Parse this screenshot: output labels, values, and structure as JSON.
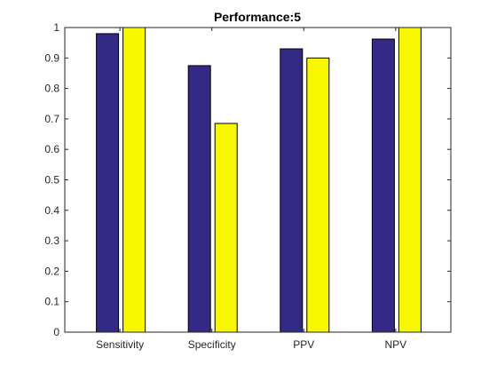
{
  "chart_data": {
    "type": "bar",
    "title": "Performance:5",
    "xlabel": "",
    "ylabel": "",
    "categories": [
      "Sensitivity",
      "Specificity",
      "PPV",
      "NPV"
    ],
    "series": [
      {
        "values": [
          0.98,
          0.875,
          0.93,
          0.962
        ],
        "color": "#322a84"
      },
      {
        "values": [
          1.0,
          0.685,
          0.9,
          1.0
        ],
        "color": "#f8f800"
      }
    ],
    "ylim": [
      0,
      1
    ],
    "yticks": [
      "0",
      "0.1",
      "0.2",
      "0.3",
      "0.4",
      "0.5",
      "0.6",
      "0.7",
      "0.8",
      "0.9",
      "1"
    ],
    "grid": false,
    "legend": "none",
    "box": true
  }
}
